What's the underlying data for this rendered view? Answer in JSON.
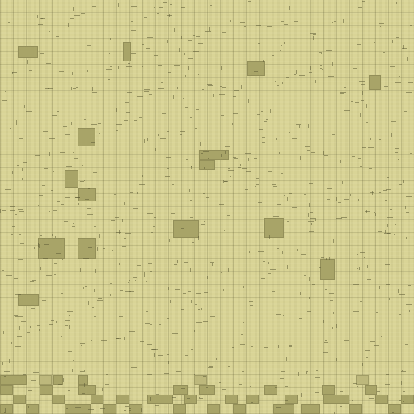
{
  "board": {
    "colors": {
      "background": "#d9d496",
      "block": "#a8a468",
      "block_light": "#bdb87c",
      "grid_line": "#5a5832"
    }
  }
}
